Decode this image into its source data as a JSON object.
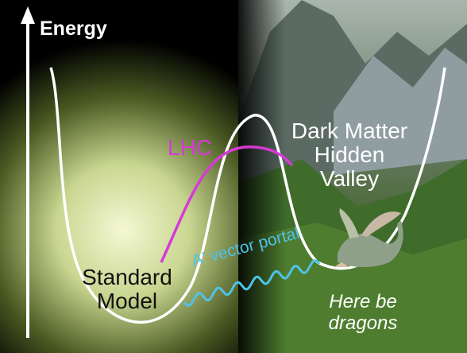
{
  "labels": {
    "energy": "Energy",
    "lhc": "LHC",
    "dark_matter": [
      "Dark Matter",
      "Hidden",
      "Valley"
    ],
    "standard_model": [
      "Standard",
      "Model"
    ],
    "portal": "A' vector portal",
    "dragons": [
      "Here be",
      "dragons"
    ]
  },
  "colors": {
    "potential_curve": "#ffffff",
    "lhc_curve": "#d63ad6",
    "portal_wave": "#4ec3e6",
    "glow": "#e8f2b0",
    "axis": "#ffffff"
  },
  "icons": {
    "dragon": "dragon-icon",
    "axis_arrow": "arrow-up-icon"
  }
}
